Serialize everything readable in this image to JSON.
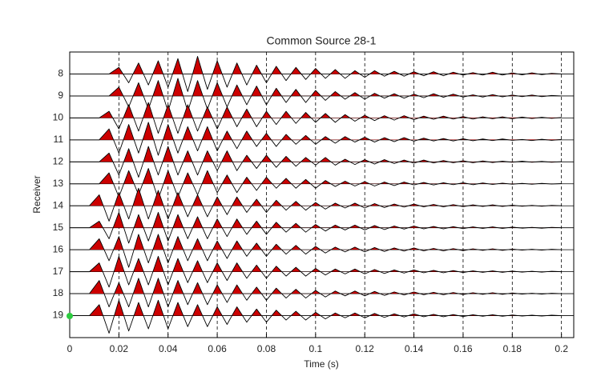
{
  "chart_data": {
    "type": "wiggle",
    "title": "Common Source 28-1",
    "x_label": "Time (s)",
    "y_label": "Receiver",
    "xlim": [
      0,
      0.205
    ],
    "xticks": [
      0,
      0.02,
      0.04,
      0.06,
      0.08,
      0.1,
      0.12,
      0.14,
      0.16,
      0.18,
      0.2
    ],
    "ylim": [
      20,
      7
    ],
    "yticks": [
      8,
      9,
      10,
      11,
      12,
      13,
      14,
      15,
      16,
      17,
      18,
      19
    ],
    "grid": true,
    "line_color": "#000000",
    "fill_color": "#cc0000",
    "x": [
      0,
      0.004,
      0.008,
      0.012,
      0.016,
      0.02,
      0.024,
      0.028,
      0.032,
      0.036,
      0.04,
      0.044,
      0.048,
      0.052,
      0.056,
      0.06,
      0.064,
      0.068,
      0.072,
      0.076,
      0.08,
      0.084,
      0.088,
      0.092,
      0.096,
      0.1,
      0.104,
      0.108,
      0.112,
      0.116,
      0.12,
      0.124,
      0.128,
      0.132,
      0.136,
      0.14,
      0.144,
      0.148,
      0.152,
      0.156,
      0.16,
      0.164,
      0.168,
      0.172,
      0.176,
      0.18,
      0.184,
      0.188,
      0.192,
      0.196,
      0.2
    ],
    "series": [
      {
        "values": [
          0,
          0,
          0,
          0,
          0,
          0.3,
          -0.4,
          0.5,
          -0.5,
          0.6,
          -0.6,
          0.7,
          -0.8,
          0.8,
          -0.7,
          0.6,
          -0.6,
          0.5,
          -0.5,
          0.4,
          -0.4,
          0.35,
          -0.3,
          0.3,
          -0.25,
          0.25,
          -0.2,
          0.2,
          -0.2,
          0.15,
          -0.15,
          0.15,
          -0.1,
          0.12,
          -0.1,
          0.1,
          -0.08,
          0.1,
          -0.08,
          0.08,
          -0.05,
          0.06,
          -0.05,
          0.08,
          -0.05,
          0.05,
          -0.04,
          0.05,
          -0.03,
          0.03,
          0
        ]
      },
      {
        "values": [
          0,
          0,
          0,
          0,
          0,
          0.4,
          -0.5,
          0.6,
          -0.6,
          0.7,
          -0.7,
          0.8,
          -0.7,
          0.7,
          -0.6,
          0.6,
          -0.5,
          0.5,
          -0.4,
          0.45,
          -0.4,
          0.35,
          -0.3,
          0.3,
          -0.3,
          0.25,
          -0.2,
          0.2,
          -0.15,
          0.15,
          -0.15,
          0.12,
          -0.1,
          0.1,
          -0.1,
          0.08,
          -0.08,
          0.1,
          -0.06,
          0.08,
          -0.05,
          0.05,
          -0.05,
          0.06,
          -0.04,
          0.04,
          -0.03,
          0.04,
          -0.03,
          0.02,
          0
        ]
      },
      {
        "values": [
          0,
          0,
          0,
          0,
          0.3,
          -0.5,
          0.6,
          -0.6,
          0.7,
          -0.7,
          0.6,
          -0.7,
          0.6,
          -0.6,
          0.5,
          -0.5,
          0.5,
          -0.4,
          0.4,
          -0.4,
          0.3,
          -0.3,
          0.3,
          -0.25,
          0.25,
          -0.2,
          0.2,
          -0.2,
          0.15,
          -0.15,
          0.12,
          -0.12,
          0.1,
          -0.1,
          0.1,
          -0.08,
          0.08,
          -0.06,
          0.08,
          -0.05,
          0.06,
          -0.05,
          0.05,
          -0.04,
          0.05,
          -0.04,
          0.04,
          -0.03,
          0.03,
          -0.02,
          0.02
        ]
      },
      {
        "values": [
          0,
          0,
          0,
          0,
          0.5,
          -0.6,
          0.7,
          -0.6,
          0.8,
          -0.7,
          0.7,
          -0.6,
          0.6,
          -0.5,
          0.6,
          -0.5,
          0.4,
          -0.4,
          0.4,
          -0.3,
          0.3,
          -0.3,
          0.25,
          -0.2,
          0.2,
          -0.2,
          0.15,
          -0.15,
          0.15,
          -0.1,
          0.12,
          -0.1,
          0.1,
          -0.08,
          0.1,
          -0.06,
          0.08,
          -0.05,
          0.06,
          -0.05,
          0.05,
          -0.04,
          0.04,
          -0.03,
          0.04,
          -0.02,
          0.02,
          -0.03,
          0.03,
          -0.02,
          0.02
        ]
      },
      {
        "values": [
          0,
          0,
          0,
          0,
          0.4,
          -0.6,
          0.6,
          -0.7,
          0.7,
          -0.6,
          0.7,
          -0.6,
          0.5,
          -0.6,
          0.5,
          -0.4,
          0.5,
          -0.4,
          0.3,
          -0.3,
          0.3,
          -0.25,
          0.25,
          -0.2,
          0.2,
          -0.15,
          0.2,
          -0.15,
          0.12,
          -0.12,
          0.1,
          -0.1,
          0.1,
          -0.08,
          0.08,
          -0.06,
          0.08,
          -0.05,
          0.06,
          -0.04,
          0.05,
          -0.04,
          0.04,
          -0.03,
          0.03,
          -0.02,
          0.03,
          -0.02,
          0.02,
          -0.02,
          0.01
        ]
      },
      {
        "values": [
          0,
          0,
          0,
          0,
          0.5,
          -0.6,
          0.6,
          -0.5,
          0.7,
          -0.7,
          0.6,
          -0.6,
          0.5,
          -0.5,
          0.6,
          -0.4,
          0.4,
          -0.4,
          0.3,
          -0.3,
          0.3,
          -0.2,
          0.25,
          -0.2,
          0.2,
          -0.2,
          0.15,
          -0.12,
          0.12,
          -0.1,
          0.1,
          -0.1,
          0.08,
          -0.08,
          0.08,
          -0.05,
          0.06,
          -0.05,
          0.05,
          -0.04,
          0.05,
          -0.04,
          0.04,
          -0.03,
          0.03,
          -0.02,
          0.02,
          -0.02,
          0.02,
          -0.01,
          0.01
        ]
      },
      {
        "values": [
          0,
          0,
          0,
          0.5,
          -0.7,
          0.6,
          -0.6,
          0.8,
          -0.6,
          0.7,
          -0.6,
          0.6,
          -0.5,
          0.5,
          -0.5,
          0.4,
          -0.4,
          0.4,
          -0.3,
          0.3,
          -0.3,
          0.25,
          -0.2,
          0.2,
          -0.2,
          0.15,
          -0.15,
          0.12,
          -0.1,
          0.12,
          -0.1,
          0.1,
          -0.08,
          0.08,
          -0.06,
          0.08,
          -0.05,
          0.06,
          -0.05,
          0.05,
          -0.04,
          0.04,
          -0.03,
          0.04,
          -0.03,
          0.03,
          -0.02,
          0.02,
          -0.02,
          0.02,
          0
        ]
      },
      {
        "values": [
          0,
          0,
          0,
          0.3,
          -0.5,
          0.7,
          -0.7,
          0.6,
          -0.6,
          0.7,
          -0.6,
          0.6,
          -0.5,
          0.5,
          -0.5,
          0.4,
          -0.4,
          0.4,
          -0.3,
          0.3,
          -0.3,
          0.25,
          -0.2,
          0.2,
          -0.2,
          0.15,
          -0.15,
          0.12,
          -0.1,
          0.12,
          -0.1,
          0.1,
          -0.08,
          0.08,
          -0.06,
          0.08,
          -0.05,
          0.06,
          -0.05,
          0.05,
          -0.04,
          0.04,
          -0.03,
          0.04,
          -0.03,
          0.03,
          -0.02,
          0.02,
          -0.02,
          0.02,
          0
        ]
      },
      {
        "values": [
          0,
          0,
          0,
          0.5,
          -0.5,
          0.6,
          -0.8,
          0.7,
          -0.6,
          0.7,
          -0.6,
          0.6,
          -0.5,
          0.5,
          -0.5,
          0.4,
          -0.4,
          0.4,
          -0.3,
          0.3,
          -0.3,
          0.25,
          -0.2,
          0.2,
          -0.2,
          0.15,
          -0.15,
          0.12,
          -0.1,
          0.12,
          -0.1,
          0.1,
          -0.08,
          0.08,
          -0.06,
          0.08,
          -0.05,
          0.06,
          -0.05,
          0.05,
          -0.04,
          0.04,
          -0.03,
          0.04,
          -0.03,
          0.03,
          -0.02,
          0.02,
          -0.02,
          0.02,
          0
        ]
      },
      {
        "values": [
          0,
          0,
          0,
          0.4,
          -0.7,
          0.7,
          -0.6,
          0.6,
          -0.6,
          0.7,
          -0.6,
          0.6,
          -0.5,
          0.5,
          -0.5,
          0.4,
          -0.4,
          0.4,
          -0.3,
          0.3,
          -0.3,
          0.25,
          -0.2,
          0.2,
          -0.2,
          0.15,
          -0.15,
          0.12,
          -0.1,
          0.12,
          -0.1,
          0.1,
          -0.08,
          0.08,
          -0.06,
          0.08,
          -0.05,
          0.06,
          -0.05,
          0.05,
          -0.04,
          0.04,
          -0.03,
          0.04,
          -0.03,
          0.03,
          -0.02,
          0.02,
          -0.02,
          0.02,
          0
        ]
      },
      {
        "values": [
          0,
          0,
          0,
          0.6,
          -0.6,
          0.5,
          -0.6,
          0.7,
          -0.6,
          0.7,
          -0.6,
          0.6,
          -0.5,
          0.5,
          -0.5,
          0.4,
          -0.4,
          0.4,
          -0.3,
          0.3,
          -0.3,
          0.25,
          -0.2,
          0.2,
          -0.2,
          0.15,
          -0.15,
          0.12,
          -0.1,
          0.12,
          -0.1,
          0.1,
          -0.08,
          0.08,
          -0.06,
          0.08,
          -0.05,
          0.06,
          -0.05,
          0.05,
          -0.04,
          0.04,
          -0.03,
          0.04,
          -0.03,
          0.03,
          -0.02,
          0.02,
          -0.02,
          0.02,
          0
        ]
      },
      {
        "values": [
          0,
          0,
          0,
          0.5,
          -0.8,
          0.7,
          -0.7,
          0.6,
          -0.6,
          0.7,
          -0.6,
          0.6,
          -0.5,
          0.5,
          -0.5,
          0.4,
          -0.4,
          0.4,
          -0.3,
          0.3,
          -0.3,
          0.25,
          -0.2,
          0.2,
          -0.2,
          0.15,
          -0.15,
          0.12,
          -0.1,
          0.12,
          -0.1,
          0.1,
          -0.08,
          0.08,
          -0.06,
          0.08,
          -0.05,
          0.06,
          -0.05,
          0.05,
          -0.04,
          0.04,
          -0.03,
          0.04,
          -0.03,
          0.03,
          -0.02,
          0.02,
          -0.02,
          0.02,
          0
        ]
      }
    ]
  }
}
